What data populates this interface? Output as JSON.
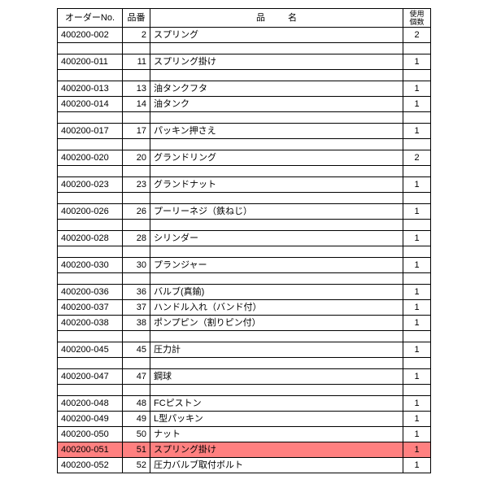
{
  "table": {
    "headers": {
      "order": "オーダーNo.",
      "num": "品番",
      "name": "品名",
      "qty_line1": "使用",
      "qty_line2": "個数"
    },
    "highlight_color": "#ff8080",
    "rows": [
      {
        "order": "400200-002",
        "num": "2",
        "name": "スプリング",
        "qty": "2"
      },
      {
        "order": "",
        "num": "",
        "name": "",
        "qty": ""
      },
      {
        "order": "400200-011",
        "num": "11",
        "name": "スプリング掛け",
        "qty": "1"
      },
      {
        "order": "",
        "num": "",
        "name": "",
        "qty": ""
      },
      {
        "order": "400200-013",
        "num": "13",
        "name": "油タンクフタ",
        "qty": "1"
      },
      {
        "order": "400200-014",
        "num": "14",
        "name": "油タンク",
        "qty": "1"
      },
      {
        "order": "",
        "num": "",
        "name": "",
        "qty": ""
      },
      {
        "order": "400200-017",
        "num": "17",
        "name": "パッキン押さえ",
        "qty": "1"
      },
      {
        "order": "",
        "num": "",
        "name": "",
        "qty": ""
      },
      {
        "order": "400200-020",
        "num": "20",
        "name": "グランドリング",
        "qty": "2"
      },
      {
        "order": "",
        "num": "",
        "name": "",
        "qty": ""
      },
      {
        "order": "400200-023",
        "num": "23",
        "name": "グランドナット",
        "qty": "1"
      },
      {
        "order": "",
        "num": "",
        "name": "",
        "qty": ""
      },
      {
        "order": "400200-026",
        "num": "26",
        "name": "プーリーネジ（鉄ねじ）",
        "qty": "1"
      },
      {
        "order": "",
        "num": "",
        "name": "",
        "qty": ""
      },
      {
        "order": "400200-028",
        "num": "28",
        "name": "シリンダー",
        "qty": "1"
      },
      {
        "order": "",
        "num": "",
        "name": "",
        "qty": ""
      },
      {
        "order": "400200-030",
        "num": "30",
        "name": "プランジャー",
        "qty": "1"
      },
      {
        "order": "",
        "num": "",
        "name": "",
        "qty": ""
      },
      {
        "order": "400200-036",
        "num": "36",
        "name": "バルブ(真鍮)",
        "qty": "1"
      },
      {
        "order": "400200-037",
        "num": "37",
        "name": "ハンドル入れ（バンド付）",
        "qty": "1"
      },
      {
        "order": "400200-038",
        "num": "38",
        "name": "ポンプピン（割りピン付）",
        "qty": "1"
      },
      {
        "order": "",
        "num": "",
        "name": "",
        "qty": ""
      },
      {
        "order": "400200-045",
        "num": "45",
        "name": "圧力計",
        "qty": "1"
      },
      {
        "order": "",
        "num": "",
        "name": "",
        "qty": ""
      },
      {
        "order": "400200-047",
        "num": "47",
        "name": "鋼球",
        "qty": "1"
      },
      {
        "order": "",
        "num": "",
        "name": "",
        "qty": ""
      },
      {
        "order": "400200-048",
        "num": "48",
        "name": "FCピストン",
        "qty": "1"
      },
      {
        "order": "400200-049",
        "num": "49",
        "name": "L型パッキン",
        "qty": "1"
      },
      {
        "order": "400200-050",
        "num": "50",
        "name": "ナット",
        "qty": "1"
      },
      {
        "order": "400200-051",
        "num": "51",
        "name": "スプリング掛け",
        "qty": "1",
        "highlight": true
      },
      {
        "order": "400200-052",
        "num": "52",
        "name": "圧力バルブ取付ボルト",
        "qty": "1"
      }
    ]
  }
}
